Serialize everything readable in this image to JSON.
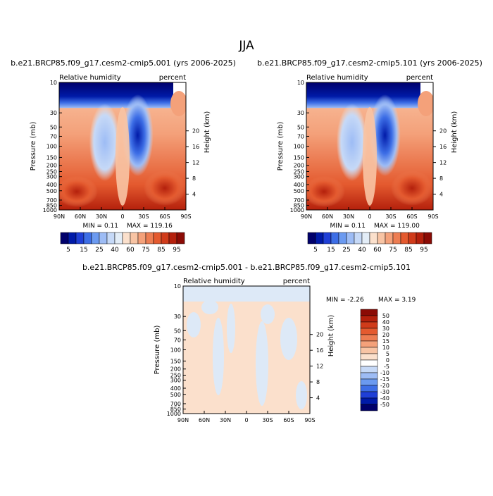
{
  "figure": {
    "season": "JJA"
  },
  "chart_data": [
    {
      "type": "heatmap",
      "title": "b.e21.BRCP85.f09_g17.cesm2-cmip5.001 (yrs 2006-2025)",
      "left_label": "Relative humidity",
      "right_label": "percent",
      "xlabel": "",
      "ylabel": "Pressure (mb)",
      "y2label": "Height (km)",
      "x_ticks": [
        "90N",
        "60N",
        "30N",
        "0",
        "30S",
        "60S",
        "90S"
      ],
      "y_ticks": [
        "10",
        "30",
        "50",
        "70",
        "100",
        "150",
        "200",
        "250",
        "300",
        "400",
        "500",
        "700",
        "850",
        "1000"
      ],
      "height_ticks": [
        "20",
        "16",
        "12",
        "8",
        "4"
      ],
      "min_label": "MIN =    0.11",
      "max_label": "MAX =  119.16",
      "colorbar_labels": [
        "5",
        "15",
        "25",
        "40",
        "60",
        "75",
        "85",
        "95"
      ],
      "colorbar_colors": [
        "#00006b",
        "#001aa8",
        "#1f3fd6",
        "#3d6ee6",
        "#6b9af0",
        "#9dbcf5",
        "#c6d9f7",
        "#e3edf7",
        "#fbe0cc",
        "#f8c4a4",
        "#f4a17a",
        "#ed7d52",
        "#e45a2f",
        "#d03b1a",
        "#b4200c",
        "#8b0b05"
      ]
    },
    {
      "type": "heatmap",
      "title": "b.e21.BRCP85.f09_g17.cesm2-cmip5.101 (yrs 2006-2025)",
      "left_label": "Relative humidity",
      "right_label": "percent",
      "xlabel": "",
      "ylabel": "Pressure (mb)",
      "y2label": "Height (km)",
      "x_ticks": [
        "90N",
        "60N",
        "30N",
        "0",
        "30S",
        "60S",
        "90S"
      ],
      "y_ticks": [
        "10",
        "30",
        "50",
        "70",
        "100",
        "150",
        "200",
        "250",
        "300",
        "400",
        "500",
        "700",
        "850",
        "1000"
      ],
      "height_ticks": [
        "20",
        "16",
        "12",
        "8",
        "4"
      ],
      "min_label": "MIN =    0.11",
      "max_label": "MAX =  119.00",
      "colorbar_labels": [
        "5",
        "15",
        "25",
        "40",
        "60",
        "75",
        "85",
        "95"
      ],
      "colorbar_colors": [
        "#00006b",
        "#001aa8",
        "#1f3fd6",
        "#3d6ee6",
        "#6b9af0",
        "#9dbcf5",
        "#c6d9f7",
        "#e3edf7",
        "#fbe0cc",
        "#f8c4a4",
        "#f4a17a",
        "#ed7d52",
        "#e45a2f",
        "#d03b1a",
        "#b4200c",
        "#8b0b05"
      ]
    },
    {
      "type": "heatmap",
      "title": "b.e21.BRCP85.f09_g17.cesm2-cmip5.001 - b.e21.BRCP85.f09_g17.cesm2-cmip5.101",
      "left_label": "Relative humidity",
      "right_label": "percent",
      "xlabel": "",
      "ylabel": "Pressure (mb)",
      "y2label": "Height (km)",
      "x_ticks": [
        "90N",
        "60N",
        "30N",
        "0",
        "30S",
        "60S",
        "90S"
      ],
      "y_ticks": [
        "10",
        "30",
        "50",
        "70",
        "100",
        "150",
        "200",
        "250",
        "300",
        "400",
        "500",
        "700",
        "850",
        "1000"
      ],
      "height_ticks": [
        "20",
        "16",
        "12",
        "8",
        "4"
      ],
      "min_label": "MIN =   -2.26",
      "max_label": "MAX =    3.19",
      "colorbar_labels": [
        "50",
        "40",
        "30",
        "20",
        "15",
        "10",
        "5",
        "0",
        "-5",
        "-10",
        "-15",
        "-20",
        "-30",
        "-40",
        "-50"
      ],
      "colorbar_colors": [
        "#8b0b05",
        "#b4200c",
        "#d03b1a",
        "#e45a2f",
        "#ed7d52",
        "#f4a17a",
        "#f8c4a4",
        "#fbe0cc",
        "#ffffff",
        "#c6d9f7",
        "#9dbcf5",
        "#6b9af0",
        "#3d6ee6",
        "#1f3fd6",
        "#001aa8",
        "#00006b"
      ]
    }
  ]
}
